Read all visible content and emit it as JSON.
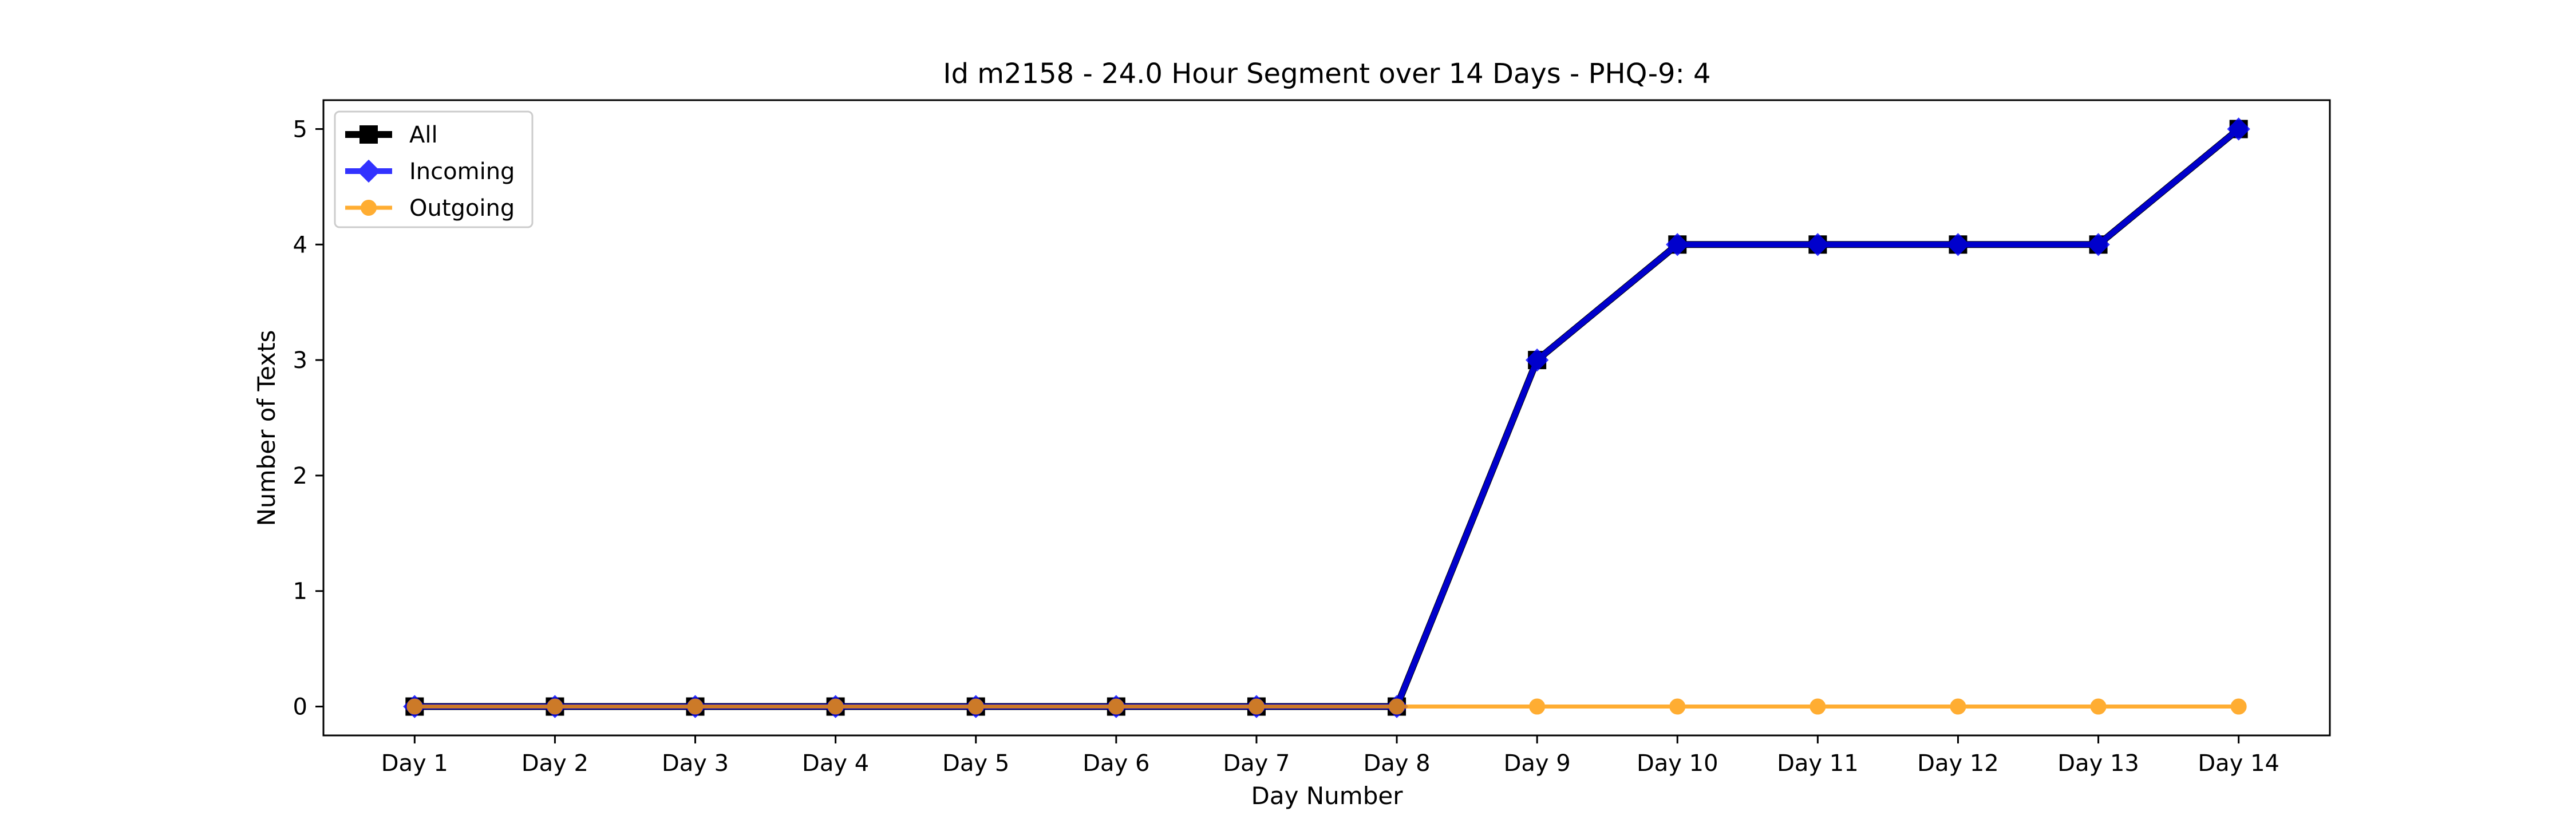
{
  "chart_data": {
    "type": "line",
    "title": "Id m2158 - 24.0 Hour Segment over 14 Days - PHQ-9: 4",
    "xlabel": "Day Number",
    "ylabel": "Number of Texts",
    "categories": [
      "Day 1",
      "Day 2",
      "Day 3",
      "Day 4",
      "Day 5",
      "Day 6",
      "Day 7",
      "Day 8",
      "Day 9",
      "Day 10",
      "Day 11",
      "Day 12",
      "Day 13",
      "Day 14"
    ],
    "yticks": [
      "0",
      "1",
      "2",
      "3",
      "4",
      "5"
    ],
    "ylim": [
      -0.25,
      5.25
    ],
    "grid": false,
    "legend": "top-left",
    "series": [
      {
        "name": "All",
        "color": "#000000",
        "marker": "square",
        "values": [
          0,
          0,
          0,
          0,
          0,
          0,
          0,
          0,
          3,
          4,
          4,
          4,
          4,
          5
        ]
      },
      {
        "name": "Incoming",
        "color": "#0000ff",
        "marker": "diamond",
        "values": [
          0,
          0,
          0,
          0,
          0,
          0,
          0,
          0,
          3,
          4,
          4,
          4,
          4,
          5
        ]
      },
      {
        "name": "Outgoing",
        "color": "#ff9900",
        "marker": "circle",
        "values": [
          0,
          0,
          0,
          0,
          0,
          0,
          0,
          0,
          0,
          0,
          0,
          0,
          0,
          0
        ]
      }
    ]
  }
}
